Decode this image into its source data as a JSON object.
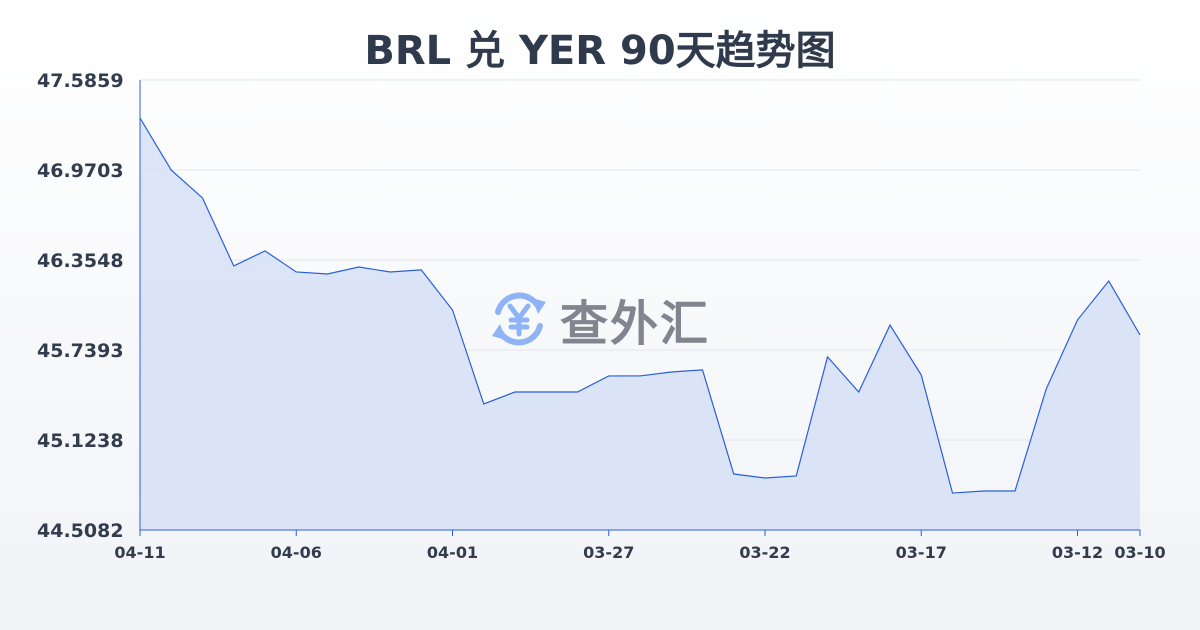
{
  "title": "BRL 兑 YER 90天趋势图",
  "watermark": "查外汇",
  "colors": {
    "line": "#2b5fd9",
    "fill": "#d6e1f6",
    "watermark_icon": "#8fb4f5"
  },
  "chart_data": {
    "type": "area",
    "title": "BRL 兑 YER 90天趋势图",
    "ylim": [
      44.5082,
      47.5859
    ],
    "yticks": [
      "47.5859",
      "46.9703",
      "46.3548",
      "45.7393",
      "45.1238",
      "44.5082"
    ],
    "xticks": [
      "04-11",
      "04-06",
      "04-01",
      "03-27",
      "03-22",
      "03-17",
      "03-12",
      "03-10"
    ],
    "grid": true,
    "x": [
      "04-11",
      "04-10",
      "04-09",
      "04-08",
      "04-07",
      "04-06",
      "04-05",
      "04-04",
      "04-03",
      "04-02",
      "04-01",
      "03-31",
      "03-30",
      "03-29",
      "03-28",
      "03-27",
      "03-26",
      "03-25",
      "03-24",
      "03-23",
      "03-22",
      "03-21",
      "03-20",
      "03-19",
      "03-18",
      "03-17",
      "03-16",
      "03-15",
      "03-14",
      "03-13",
      "03-12",
      "03-11",
      "03-10"
    ],
    "values": [
      47.326,
      46.97,
      46.779,
      46.314,
      46.417,
      46.273,
      46.259,
      46.307,
      46.273,
      46.287,
      46.013,
      45.37,
      45.452,
      45.452,
      45.452,
      45.562,
      45.562,
      45.589,
      45.603,
      44.891,
      44.864,
      44.878,
      45.692,
      45.452,
      45.91,
      45.568,
      44.761,
      44.775,
      44.775,
      45.473,
      45.945,
      46.211,
      45.842
    ]
  }
}
